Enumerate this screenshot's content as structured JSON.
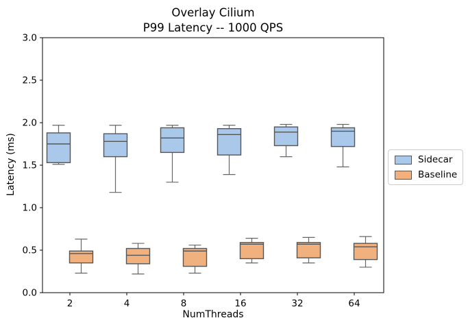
{
  "chart_data": {
    "type": "boxplot",
    "title_line1": "Overlay Cilium",
    "title_line2": "P99 Latency -- 1000 QPS",
    "xlabel": "NumThreads",
    "ylabel": "Latency (ms)",
    "categories": [
      "2",
      "4",
      "8",
      "16",
      "32",
      "64"
    ],
    "ylim": [
      0.0,
      3.0
    ],
    "yticks": [
      "0.0",
      "0.5",
      "1.0",
      "1.5",
      "2.0",
      "2.5",
      "3.0"
    ],
    "grid": false,
    "legend_position": "outside-right",
    "colors": {
      "sidecar_fill": "#aac8ea",
      "baseline_fill": "#f1b17f",
      "box_edge": "#555555",
      "whisker": "#666666",
      "axes": "#000000",
      "legend_border": "#cccccc",
      "background": "#ffffff"
    },
    "series": [
      {
        "name": "Sidecar",
        "color": "#aac8ea",
        "boxes": [
          {
            "whislo": 1.51,
            "q1": 1.53,
            "med": 1.75,
            "q3": 1.88,
            "whishi": 1.97
          },
          {
            "whislo": 1.18,
            "q1": 1.6,
            "med": 1.78,
            "q3": 1.87,
            "whishi": 1.97
          },
          {
            "whislo": 1.3,
            "q1": 1.65,
            "med": 1.82,
            "q3": 1.94,
            "whishi": 1.97
          },
          {
            "whislo": 1.39,
            "q1": 1.62,
            "med": 1.86,
            "q3": 1.93,
            "whishi": 1.97
          },
          {
            "whislo": 1.6,
            "q1": 1.73,
            "med": 1.89,
            "q3": 1.95,
            "whishi": 1.98
          },
          {
            "whislo": 1.48,
            "q1": 1.72,
            "med": 1.9,
            "q3": 1.94,
            "whishi": 1.98
          }
        ]
      },
      {
        "name": "Baseline",
        "color": "#f1b17f",
        "boxes": [
          {
            "whislo": 0.23,
            "q1": 0.35,
            "med": 0.46,
            "q3": 0.49,
            "whishi": 0.63
          },
          {
            "whislo": 0.22,
            "q1": 0.34,
            "med": 0.44,
            "q3": 0.52,
            "whishi": 0.58
          },
          {
            "whislo": 0.23,
            "q1": 0.31,
            "med": 0.49,
            "q3": 0.52,
            "whishi": 0.56
          },
          {
            "whislo": 0.35,
            "q1": 0.4,
            "med": 0.57,
            "q3": 0.59,
            "whishi": 0.64
          },
          {
            "whislo": 0.35,
            "q1": 0.41,
            "med": 0.57,
            "q3": 0.59,
            "whishi": 0.65
          },
          {
            "whislo": 0.3,
            "q1": 0.39,
            "med": 0.54,
            "q3": 0.58,
            "whishi": 0.66
          }
        ]
      }
    ]
  }
}
